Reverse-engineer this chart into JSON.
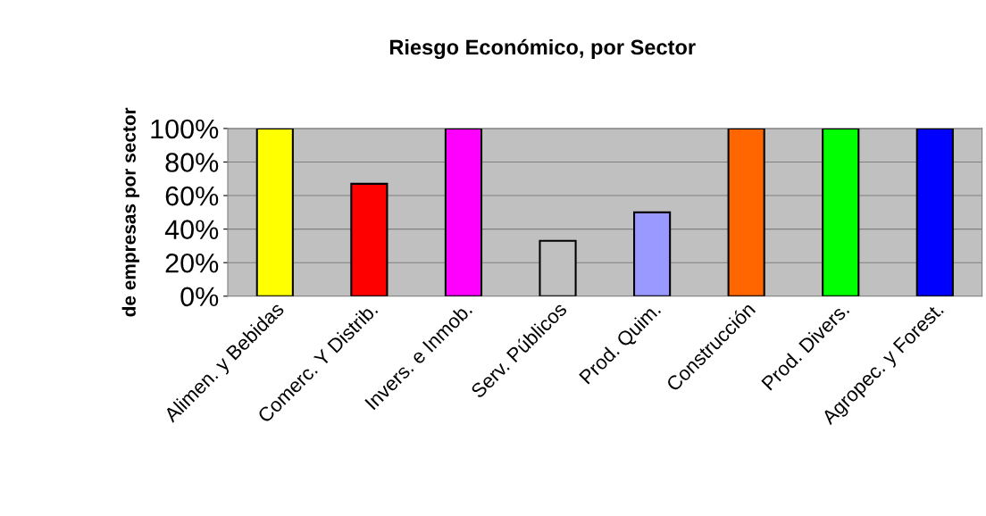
{
  "chart_data": {
    "type": "bar",
    "title": "Riesgo Económico, por Sector",
    "ylabel": "de empresas por sector",
    "categories": [
      "Alimen. y Bebidas",
      "Comerc. Y Distrib.",
      "Invers. e Inmob.",
      "Serv. Públicos",
      "Prod. Quim.",
      "Construcción",
      "Prod. Divers.",
      "Agropec. y Forest."
    ],
    "values": [
      100,
      67,
      100,
      33,
      50,
      100,
      100,
      100
    ],
    "colors": [
      "#ffff00",
      "#ff0000",
      "#ff00ff",
      "#c0c0c0",
      "#9999ff",
      "#ff6600",
      "#00ff00",
      "#0000ff"
    ],
    "ylim": [
      0,
      100
    ],
    "yticks": [
      {
        "value": 0,
        "label": "0%"
      },
      {
        "value": 20,
        "label": "20%"
      },
      {
        "value": 40,
        "label": "40%"
      },
      {
        "value": 60,
        "label": "60%"
      },
      {
        "value": 80,
        "label": "80%"
      },
      {
        "value": 100,
        "label": "100%"
      }
    ],
    "grid": "y",
    "legend": false
  }
}
